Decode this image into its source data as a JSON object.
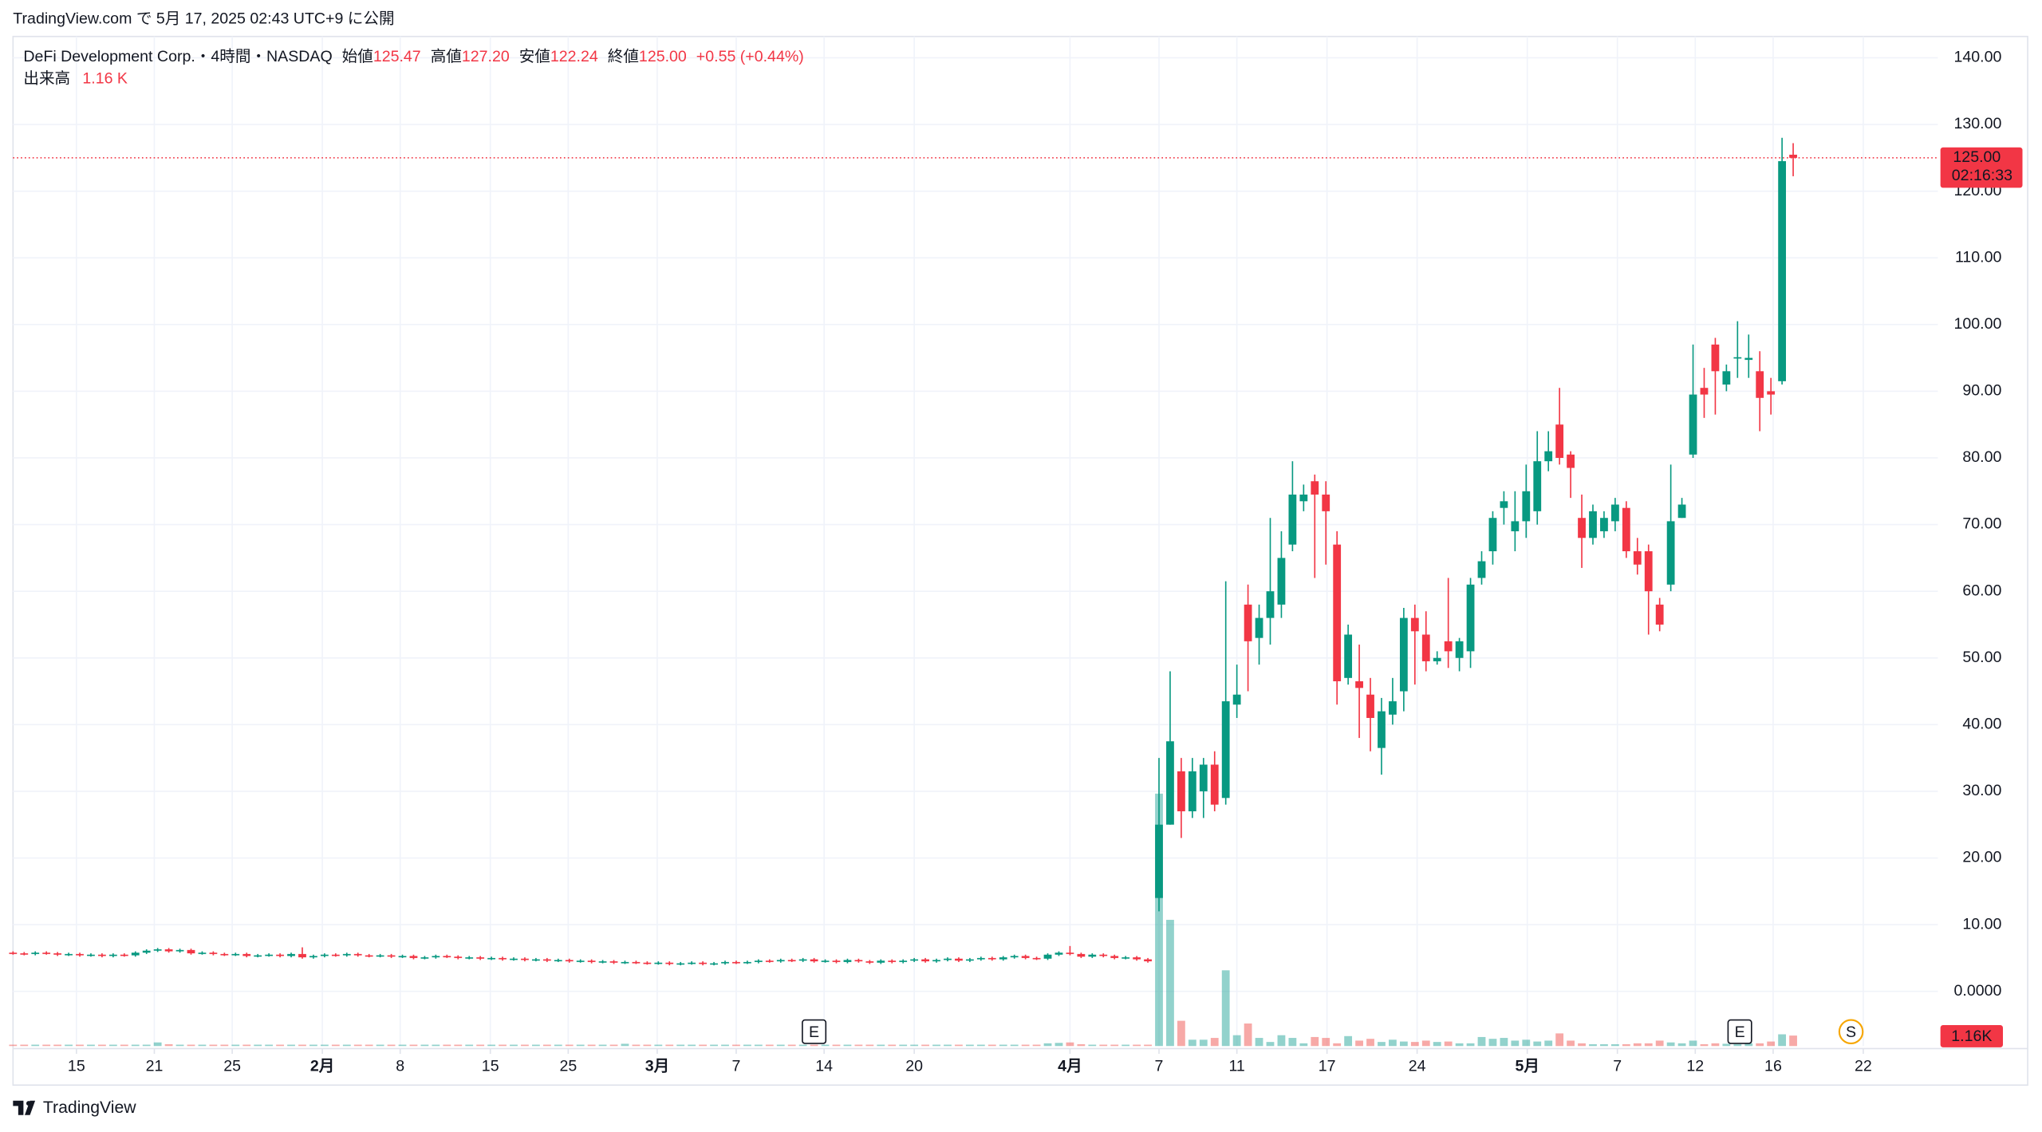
{
  "published": "TradingView.com で 5月 17, 2025 02:43 UTC+9 に公開",
  "brand": "TradingView",
  "legend": {
    "symbol": "DeFi Development Corp.・4時間・NASDAQ",
    "open_label": "始値",
    "open": "125.47",
    "high_label": "高値",
    "high": "127.20",
    "low_label": "安値",
    "low": "122.24",
    "close_label": "終値",
    "close": "125.00",
    "change": "+0.55 (+0.44%)",
    "volume_label": "出来高",
    "volume": "1.16 K"
  },
  "chart_data": {
    "type": "candlestick",
    "up_color": "#089981",
    "down_color": "#f23645",
    "volume_up_color": "#26a69a",
    "volume_down_color": "#ef5350",
    "grid": true,
    "xlim": [
      0,
      173
    ],
    "ylim": [
      -8.2,
      143.2
    ],
    "volume_ylim": [
      0,
      112000
    ],
    "xticks": [
      {
        "value": 5.7,
        "label": "15"
      },
      {
        "value": 12.7,
        "label": "21"
      },
      {
        "value": 19.7,
        "label": "25"
      },
      {
        "value": 27.8,
        "label": "2月"
      },
      {
        "value": 34.8,
        "label": "8"
      },
      {
        "value": 42.9,
        "label": "15"
      },
      {
        "value": 49.9,
        "label": "25"
      },
      {
        "value": 57.9,
        "label": "3月"
      },
      {
        "value": 65,
        "label": "7"
      },
      {
        "value": 72.9,
        "label": "14"
      },
      {
        "value": 81,
        "label": "20"
      },
      {
        "value": 95,
        "label": "4月"
      },
      {
        "value": 103,
        "label": "7"
      },
      {
        "value": 110,
        "label": "11"
      },
      {
        "value": 118.1,
        "label": "17"
      },
      {
        "value": 126.2,
        "label": "24"
      },
      {
        "value": 136.1,
        "label": "5月"
      },
      {
        "value": 144.2,
        "label": "7"
      },
      {
        "value": 151.2,
        "label": "12"
      },
      {
        "value": 158.2,
        "label": "16"
      },
      {
        "value": 166.3,
        "label": "22"
      }
    ],
    "yticks": [
      {
        "value": 0,
        "label": "0.0000"
      },
      {
        "value": 10,
        "label": "10.00"
      },
      {
        "value": 20,
        "label": "20.00"
      },
      {
        "value": 30,
        "label": "30.00"
      },
      {
        "value": 40,
        "label": "40.00"
      },
      {
        "value": 50,
        "label": "50.00"
      },
      {
        "value": 60,
        "label": "60.00"
      },
      {
        "value": 70,
        "label": "70.00"
      },
      {
        "value": 80,
        "label": "80.00"
      },
      {
        "value": 90,
        "label": "90.00"
      },
      {
        "value": 100,
        "label": "100.00"
      },
      {
        "value": 110,
        "label": "110.00"
      },
      {
        "value": 120,
        "label": "120.00"
      },
      {
        "value": 130,
        "label": "130.00"
      },
      {
        "value": 140,
        "label": "140.00"
      }
    ],
    "x": [
      0,
      1,
      2,
      3,
      4,
      5,
      6,
      7,
      8,
      9,
      10,
      11,
      12,
      13,
      14,
      15,
      16,
      17,
      18,
      19,
      20,
      21,
      22,
      23,
      24,
      25,
      26,
      27,
      28,
      29,
      30,
      31,
      32,
      33,
      34,
      35,
      36,
      37,
      38,
      39,
      40,
      41,
      42,
      43,
      44,
      45,
      46,
      47,
      48,
      49,
      50,
      51,
      52,
      53,
      54,
      55,
      56,
      57,
      58,
      59,
      60,
      61,
      62,
      63,
      64,
      65,
      66,
      67,
      68,
      69,
      70,
      71,
      72,
      73,
      74,
      75,
      76,
      77,
      78,
      79,
      80,
      81,
      82,
      83,
      84,
      85,
      86,
      87,
      88,
      89,
      90,
      91,
      92,
      93,
      94,
      95,
      96,
      97,
      98,
      99,
      100,
      101,
      102,
      103,
      104,
      105,
      106,
      107,
      108,
      109,
      110,
      111,
      112,
      113,
      114,
      115,
      116,
      117,
      118,
      119,
      120,
      121,
      122,
      123,
      124,
      125,
      126,
      127,
      128,
      129,
      130,
      131,
      132,
      133,
      134,
      135,
      136,
      137,
      138,
      139,
      140,
      141,
      142,
      143,
      144,
      145,
      146,
      147,
      148,
      149,
      150,
      151,
      152,
      153,
      154,
      155,
      156,
      157,
      158,
      159,
      160
    ],
    "open": [
      5.8,
      5.7,
      5.6,
      5.8,
      5.7,
      5.5,
      5.6,
      5.4,
      5.5,
      5.3,
      5.5,
      5.4,
      5.8,
      6.1,
      6.3,
      6.0,
      6.2,
      5.7,
      5.8,
      5.6,
      5.5,
      5.6,
      5.3,
      5.4,
      5.5,
      5.3,
      5.6,
      5.1,
      5.3,
      5.5,
      5.4,
      5.6,
      5.4,
      5.3,
      5.4,
      5.2,
      5.3,
      5.0,
      5.1,
      5.3,
      5.2,
      5.0,
      5.1,
      4.9,
      5.0,
      4.8,
      4.9,
      4.7,
      4.8,
      4.6,
      4.7,
      4.5,
      4.6,
      4.4,
      4.5,
      4.3,
      4.4,
      4.3,
      4.2,
      4.3,
      4.1,
      4.2,
      4.3,
      4.1,
      4.2,
      4.4,
      4.3,
      4.4,
      4.6,
      4.5,
      4.7,
      4.6,
      4.8,
      4.5,
      4.6,
      4.4,
      4.7,
      4.5,
      4.3,
      4.6,
      4.4,
      4.6,
      4.8,
      4.5,
      4.7,
      4.9,
      4.6,
      4.8,
      5.0,
      4.8,
      5.1,
      5.3,
      5.0,
      4.9,
      5.5,
      5.8,
      5.6,
      5.2,
      5.5,
      5.3,
      5.0,
      5.1,
      4.8,
      14,
      25,
      33,
      27,
      30,
      34,
      29,
      43,
      58,
      53,
      56,
      58,
      67,
      73.5,
      76.5,
      74.5,
      67,
      47,
      46.5,
      44.5,
      36.5,
      41.5,
      45,
      56,
      53.5,
      49.5,
      52.5,
      50,
      51,
      62,
      66,
      72.5,
      69,
      70.5,
      72,
      79.5,
      85,
      80.5,
      71,
      68,
      69,
      70.5,
      72.5,
      66,
      66,
      58,
      61,
      71,
      80.5,
      90.5,
      97,
      91,
      94.9,
      94.7,
      93,
      90,
      91.5,
      125.47
    ],
    "high": [
      6.0,
      5.9,
      6.0,
      6.0,
      5.9,
      5.8,
      5.8,
      5.7,
      5.7,
      5.7,
      5.7,
      6.0,
      6.3,
      6.5,
      6.5,
      6.4,
      6.4,
      6.0,
      6.0,
      5.8,
      5.8,
      5.8,
      5.6,
      5.7,
      5.7,
      5.8,
      6.6,
      5.5,
      5.7,
      5.7,
      5.8,
      5.8,
      5.6,
      5.6,
      5.6,
      5.5,
      5.5,
      5.3,
      5.5,
      5.5,
      5.4,
      5.3,
      5.3,
      5.2,
      5.2,
      5.1,
      5.1,
      5.0,
      5.0,
      4.9,
      4.9,
      4.8,
      4.8,
      4.7,
      4.7,
      4.6,
      4.6,
      4.5,
      4.5,
      4.5,
      4.4,
      4.5,
      4.5,
      4.4,
      4.6,
      4.6,
      4.6,
      4.8,
      4.8,
      4.9,
      4.9,
      5.0,
      5.0,
      4.8,
      4.8,
      4.9,
      4.9,
      4.7,
      4.8,
      4.8,
      4.8,
      5.0,
      5.0,
      4.9,
      5.1,
      5.1,
      5.0,
      5.2,
      5.2,
      5.3,
      5.5,
      5.5,
      5.2,
      5.7,
      6.0,
      6.8,
      5.8,
      5.7,
      5.7,
      5.5,
      5.3,
      5.3,
      5.0,
      35,
      48,
      35,
      35,
      35,
      36,
      61.5,
      49,
      61,
      58,
      71,
      69,
      79.5,
      76,
      77.5,
      76.5,
      69,
      55,
      52,
      47,
      44,
      47,
      57.5,
      58,
      57,
      51,
      62,
      53,
      62,
      66,
      72,
      75,
      75,
      79,
      84,
      84,
      90.5,
      81,
      74.5,
      73,
      72,
      74,
      73.5,
      68,
      67,
      59,
      79,
      74,
      97,
      93.5,
      98,
      94,
      100.5,
      98.5,
      96,
      92,
      128,
      127.2
    ],
    "low": [
      5.5,
      5.4,
      5.4,
      5.5,
      5.3,
      5.3,
      5.2,
      5.2,
      5.1,
      5.1,
      5.2,
      5.2,
      5.6,
      5.9,
      5.8,
      5.8,
      5.5,
      5.5,
      5.4,
      5.3,
      5.3,
      5.1,
      5.1,
      5.2,
      5.1,
      5.1,
      4.9,
      4.9,
      5.1,
      5.2,
      5.2,
      5.2,
      5.1,
      5.1,
      5.0,
      5.0,
      4.8,
      4.8,
      4.9,
      5.0,
      4.8,
      4.8,
      4.7,
      4.7,
      4.6,
      4.6,
      4.5,
      4.5,
      4.4,
      4.4,
      4.3,
      4.3,
      4.2,
      4.2,
      4.1,
      4.1,
      4.1,
      4.0,
      4.0,
      3.9,
      3.9,
      4.0,
      3.9,
      3.9,
      4.0,
      4.1,
      4.1,
      4.2,
      4.3,
      4.3,
      4.4,
      4.4,
      4.3,
      4.3,
      4.2,
      4.2,
      4.3,
      4.1,
      4.1,
      4.2,
      4.2,
      4.4,
      4.3,
      4.3,
      4.5,
      4.4,
      4.4,
      4.6,
      4.6,
      4.6,
      4.9,
      4.8,
      4.7,
      4.7,
      5.3,
      5.4,
      5.0,
      5.0,
      5.1,
      4.8,
      4.8,
      4.6,
      4.3,
      12,
      25,
      23,
      26,
      26,
      27,
      28,
      41,
      45,
      49,
      52,
      56,
      66,
      72,
      62,
      64,
      43,
      46,
      38,
      36,
      32.5,
      40,
      42,
      46,
      48,
      49,
      48.5,
      48,
      48.5,
      61,
      64,
      70,
      66,
      68,
      70,
      78,
      79,
      74,
      63.5,
      67,
      68,
      69,
      65,
      62.5,
      53.5,
      54,
      60,
      71,
      80,
      86,
      86.5,
      90,
      92,
      92,
      84,
      86.5,
      91,
      122.24
    ],
    "close": [
      5.7,
      5.6,
      5.8,
      5.7,
      5.5,
      5.6,
      5.4,
      5.5,
      5.3,
      5.5,
      5.4,
      5.8,
      6.1,
      6.3,
      6.0,
      6.2,
      5.7,
      5.8,
      5.6,
      5.5,
      5.6,
      5.3,
      5.4,
      5.5,
      5.3,
      5.6,
      5.1,
      5.3,
      5.5,
      5.4,
      5.6,
      5.4,
      5.3,
      5.4,
      5.2,
      5.3,
      5.0,
      5.1,
      5.3,
      5.2,
      5.0,
      5.1,
      4.9,
      5.0,
      4.8,
      4.9,
      4.7,
      4.8,
      4.6,
      4.7,
      4.5,
      4.6,
      4.4,
      4.5,
      4.3,
      4.4,
      4.3,
      4.2,
      4.3,
      4.1,
      4.2,
      4.3,
      4.1,
      4.2,
      4.4,
      4.3,
      4.4,
      4.6,
      4.5,
      4.7,
      4.6,
      4.8,
      4.5,
      4.6,
      4.4,
      4.7,
      4.5,
      4.3,
      4.6,
      4.4,
      4.6,
      4.8,
      4.5,
      4.7,
      4.9,
      4.6,
      4.8,
      5.0,
      4.8,
      5.1,
      5.3,
      5.0,
      4.9,
      5.5,
      5.8,
      5.6,
      5.2,
      5.5,
      5.3,
      5.0,
      5.1,
      4.8,
      4.5,
      25,
      37.5,
      27,
      33,
      34,
      28,
      43.5,
      44.5,
      52.5,
      56,
      60,
      65,
      74.5,
      74.5,
      74.5,
      72,
      46.5,
      53.5,
      45.5,
      41,
      42,
      43.5,
      56,
      54,
      49.5,
      50,
      51,
      52.5,
      61,
      64.5,
      71,
      73.5,
      70.5,
      75,
      79.5,
      81,
      80,
      78.5,
      68,
      72,
      71,
      73,
      66,
      64,
      60,
      55,
      70.5,
      73,
      89.5,
      89.5,
      93,
      93,
      95.1,
      95,
      89,
      89.5,
      124.5,
      125
    ],
    "volume": [
      150,
      150,
      150,
      150,
      150,
      150,
      150,
      150,
      150,
      150,
      150,
      150,
      150,
      400,
      200,
      150,
      150,
      150,
      150,
      150,
      150,
      150,
      150,
      150,
      150,
      150,
      150,
      150,
      150,
      150,
      150,
      150,
      150,
      150,
      150,
      150,
      150,
      150,
      150,
      150,
      150,
      150,
      150,
      150,
      150,
      150,
      150,
      150,
      150,
      150,
      150,
      150,
      150,
      150,
      150,
      250,
      150,
      150,
      150,
      150,
      150,
      150,
      150,
      150,
      150,
      150,
      150,
      150,
      150,
      150,
      150,
      150,
      150,
      150,
      150,
      150,
      150,
      150,
      150,
      150,
      150,
      150,
      150,
      150,
      150,
      150,
      150,
      150,
      150,
      150,
      150,
      150,
      150,
      300,
      350,
      400,
      200,
      150,
      150,
      150,
      150,
      150,
      150,
      28000,
      14000,
      2800,
      700,
      700,
      900,
      8400,
      1200,
      2500,
      900,
      450,
      1200,
      900,
      300,
      1000,
      900,
      300,
      1100,
      600,
      800,
      450,
      700,
      500,
      450,
      600,
      450,
      500,
      300,
      300,
      1000,
      800,
      900,
      600,
      700,
      500,
      600,
      1400,
      600,
      300,
      200,
      200,
      200,
      200,
      300,
      300,
      600,
      400,
      300,
      600,
      200,
      300,
      250,
      200,
      300,
      300,
      500,
      1300,
      1160
    ],
    "last_price": {
      "value": 125,
      "label": "125.00",
      "countdown": "02:16:33"
    },
    "last_volume_label": "1.16K",
    "events": [
      {
        "x": 72,
        "label": "E"
      },
      {
        "x": 155.2,
        "label": "E"
      },
      {
        "x": 165.2,
        "label": "S"
      }
    ]
  }
}
